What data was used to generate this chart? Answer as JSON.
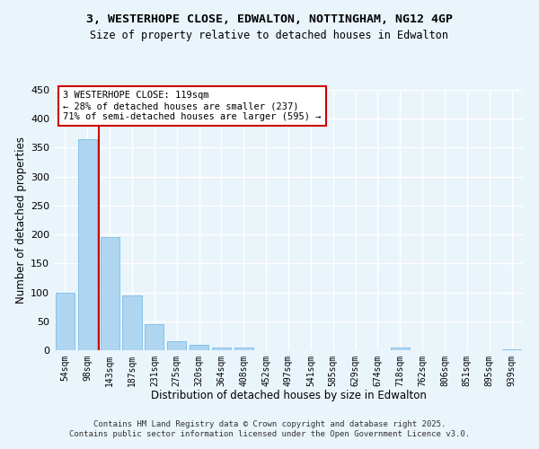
{
  "title": "3, WESTERHOPE CLOSE, EDWALTON, NOTTINGHAM, NG12 4GP",
  "subtitle": "Size of property relative to detached houses in Edwalton",
  "xlabel": "Distribution of detached houses by size in Edwalton",
  "ylabel": "Number of detached properties",
  "categories": [
    "54sqm",
    "98sqm",
    "143sqm",
    "187sqm",
    "231sqm",
    "275sqm",
    "320sqm",
    "364sqm",
    "408sqm",
    "452sqm",
    "497sqm",
    "541sqm",
    "585sqm",
    "629sqm",
    "674sqm",
    "718sqm",
    "762sqm",
    "806sqm",
    "851sqm",
    "895sqm",
    "939sqm"
  ],
  "bar_heights": [
    100,
    365,
    195,
    95,
    45,
    15,
    10,
    5,
    5,
    0,
    0,
    0,
    0,
    0,
    0,
    4,
    0,
    0,
    0,
    0,
    2
  ],
  "bar_color": "#aed6f1",
  "bar_edge_color": "#85c1e9",
  "vline_x_index": 1,
  "vline_color": "#cc0000",
  "annotation_text": "3 WESTERHOPE CLOSE: 119sqm\n← 28% of detached houses are smaller (237)\n71% of semi-detached houses are larger (595) →",
  "annotation_box_color": "#ffffff",
  "annotation_box_edge": "#cc0000",
  "ylim": [
    0,
    450
  ],
  "yticks": [
    0,
    50,
    100,
    150,
    200,
    250,
    300,
    350,
    400,
    450
  ],
  "background_color": "#eaf4fb",
  "grid_color": "#ffffff",
  "footer_line1": "Contains HM Land Registry data © Crown copyright and database right 2025.",
  "footer_line2": "Contains public sector information licensed under the Open Government Licence v3.0."
}
